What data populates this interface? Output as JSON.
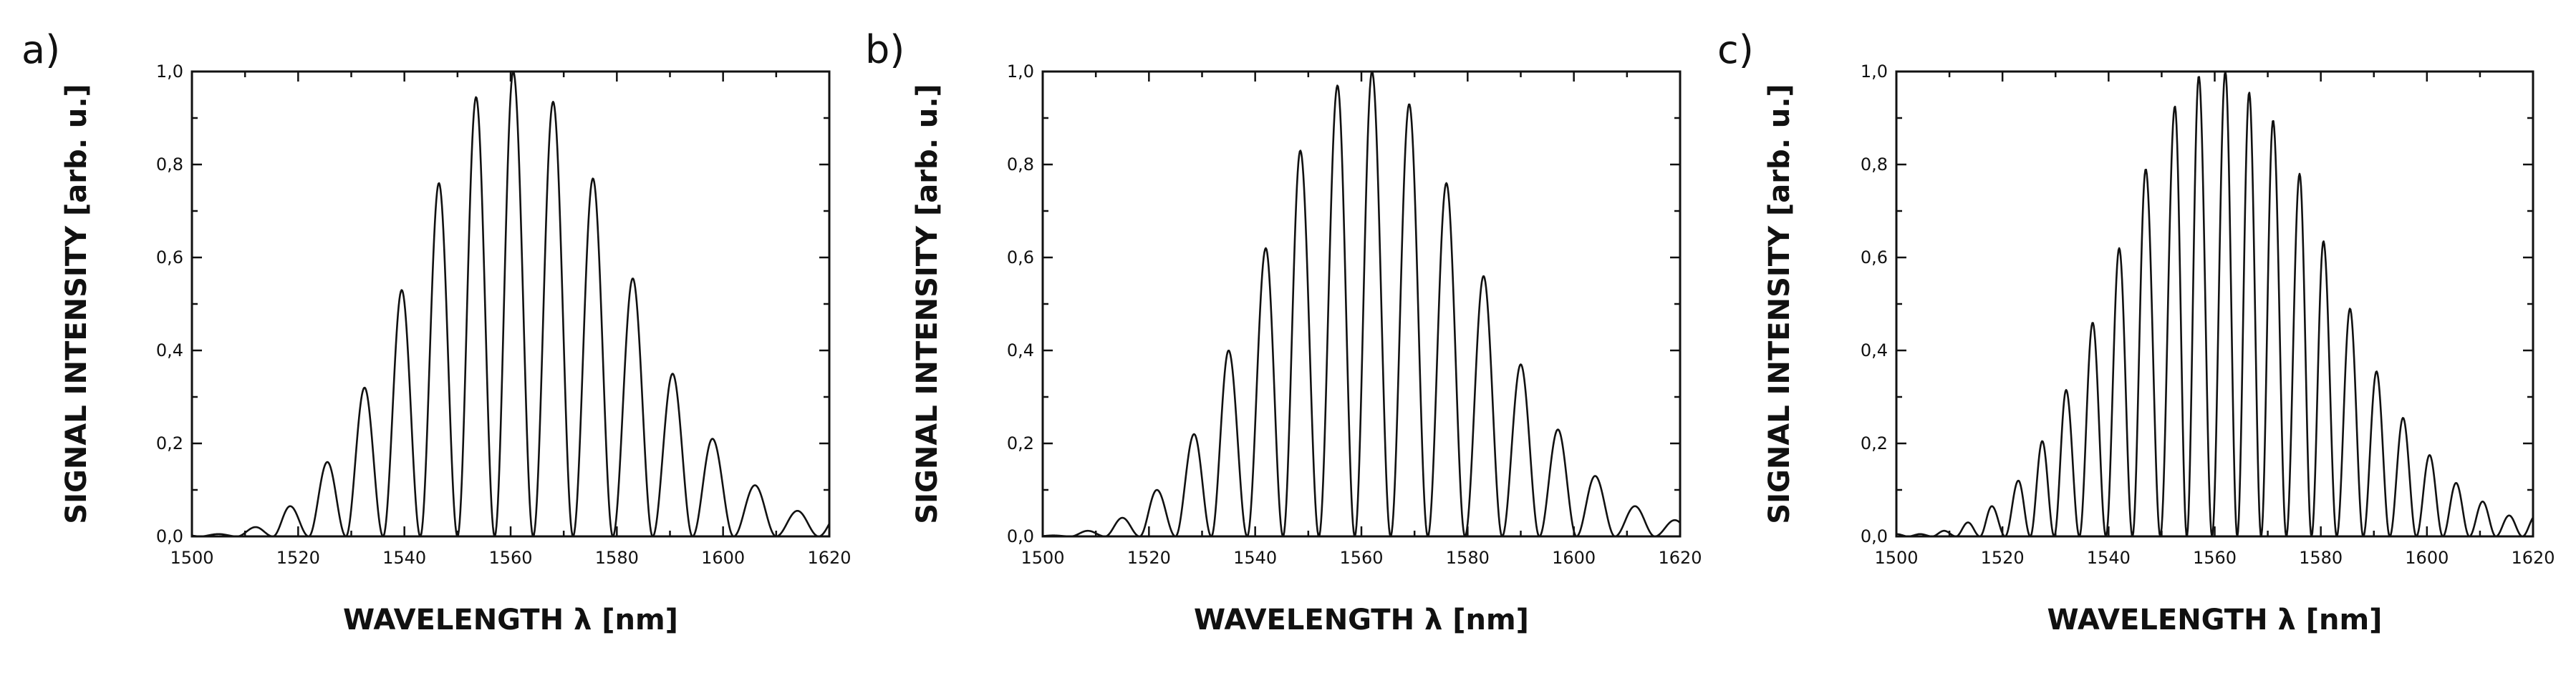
{
  "chart_data": [
    {
      "type": "line",
      "panel_label": "a)",
      "xlabel": "WAVELENGTH λ [nm]",
      "ylabel": "SIGNAL INTENSITY [arb. u.]",
      "xlim": [
        1500,
        1620
      ],
      "ylim": [
        0.0,
        1.0
      ],
      "x_ticks": [
        "1500",
        "1520",
        "1540",
        "1560",
        "1580",
        "1600",
        "1620"
      ],
      "y_ticks": [
        "0,0",
        "0,2",
        "0,4",
        "0,6",
        "0,8",
        "1,0"
      ],
      "grid": false,
      "series": [
        {
          "peaks_x": [
            1505,
            1512,
            1518.5,
            1525.5,
            1532.5,
            1539.5,
            1546.5,
            1553.5,
            1560.5,
            1568,
            1575.5,
            1583,
            1590.5,
            1598,
            1606,
            1614
          ],
          "peaks_y": [
            0.005,
            0.02,
            0.065,
            0.16,
            0.32,
            0.53,
            0.76,
            0.945,
            1.0,
            0.935,
            0.77,
            0.555,
            0.35,
            0.21,
            0.11,
            0.055
          ],
          "minimum_y": 0.0
        }
      ]
    },
    {
      "type": "line",
      "panel_label": "b)",
      "xlabel": "WAVELENGTH λ [nm]",
      "ylabel": "SIGNAL INTENSITY [arb. u.]",
      "xlim": [
        1500,
        1620
      ],
      "ylim": [
        0.0,
        1.0
      ],
      "x_ticks": [
        "1500",
        "1520",
        "1540",
        "1560",
        "1580",
        "1600",
        "1620"
      ],
      "y_ticks": [
        "0,0",
        "0,2",
        "0,4",
        "0,6",
        "0,8",
        "1,0"
      ],
      "grid": false,
      "series": [
        {
          "peaks_x": [
            1502,
            1508.5,
            1515,
            1521.5,
            1528.5,
            1535,
            1542,
            1548.5,
            1555.5,
            1562,
            1569,
            1576,
            1583,
            1590,
            1597,
            1604,
            1611.5,
            1619
          ],
          "peaks_y": [
            0.002,
            0.012,
            0.04,
            0.1,
            0.22,
            0.4,
            0.62,
            0.83,
            0.97,
            1.0,
            0.93,
            0.76,
            0.56,
            0.37,
            0.23,
            0.13,
            0.065,
            0.035
          ],
          "minimum_y": 0.0
        }
      ]
    },
    {
      "type": "line",
      "panel_label": "c)",
      "xlabel": "WAVELENGTH λ [nm]",
      "ylabel": "SIGNAL INTENSITY [arb. u.]",
      "xlim": [
        1500,
        1620
      ],
      "ylim": [
        0.0,
        1.0
      ],
      "x_ticks": [
        "1500",
        "1520",
        "1540",
        "1560",
        "1580",
        "1600",
        "1620"
      ],
      "y_ticks": [
        "0,0",
        "0,2",
        "0,4",
        "0,6",
        "0,8",
        "1,0"
      ],
      "grid": false,
      "series": [
        {
          "peaks_x": [
            1504.5,
            1509,
            1513.5,
            1518,
            1523,
            1527.5,
            1532,
            1537,
            1542,
            1547,
            1552.5,
            1557,
            1562,
            1566.5,
            1571,
            1576,
            1580.5,
            1585.5,
            1590.5,
            1595.5,
            1600.5,
            1605.5,
            1610.5,
            1615.5
          ],
          "peaks_y": [
            0.005,
            0.012,
            0.03,
            0.065,
            0.12,
            0.205,
            0.315,
            0.46,
            0.62,
            0.79,
            0.925,
            0.99,
            1.0,
            0.955,
            0.895,
            0.78,
            0.635,
            0.49,
            0.355,
            0.255,
            0.175,
            0.115,
            0.075,
            0.045
          ],
          "minimum_y": 0.0
        }
      ]
    }
  ]
}
